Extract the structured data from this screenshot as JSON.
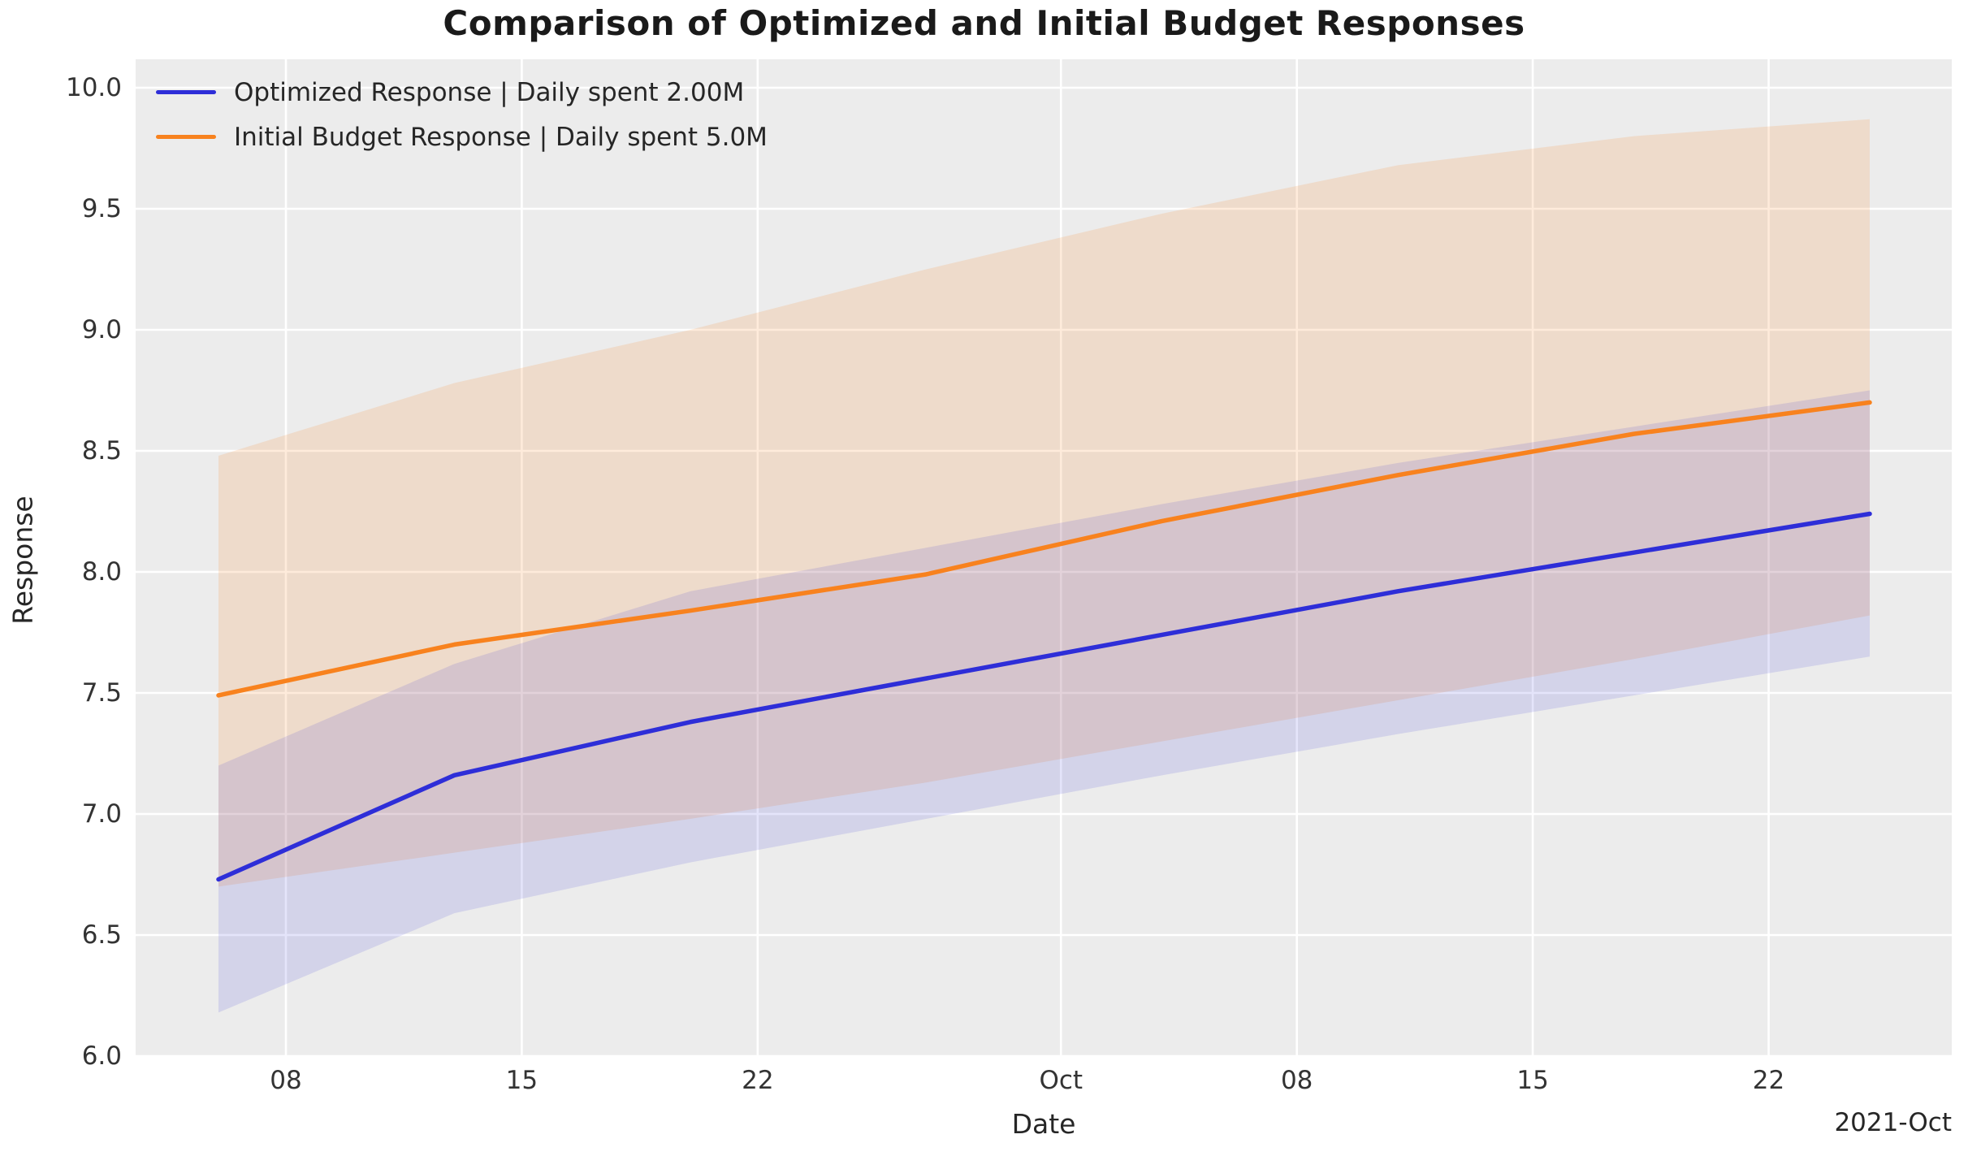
{
  "chart_data": {
    "type": "line",
    "title": "Comparison of Optimized and Initial Budget Responses",
    "xlabel": "Date",
    "ylabel": "Response",
    "axis_offset_label": "2021-Oct",
    "ylim": [
      6.0,
      10.0
    ],
    "xlim_dates": [
      "2021-09-03",
      "2021-10-28"
    ],
    "grid": true,
    "legend_position": "upper-left",
    "colors": {
      "optimized_line": "#2e2ed8",
      "initial_line": "#f8821e",
      "optimized_band": "rgba(50,50,215,0.13)",
      "initial_band": "rgba(246,130,30,0.16)",
      "plot_background": "#ececec",
      "gridline": "#ffffff",
      "text": "#262626"
    },
    "x_dates": [
      "2021-09-06",
      "2021-09-13",
      "2021-09-20",
      "2021-09-27",
      "2021-10-04",
      "2021-10-11",
      "2021-10-18",
      "2021-10-25"
    ],
    "x_day_offsets": [
      0,
      7,
      14,
      21,
      28,
      35,
      42,
      49
    ],
    "x_ticks": [
      {
        "label": "08",
        "day": 2
      },
      {
        "label": "15",
        "day": 9
      },
      {
        "label": "22",
        "day": 16
      },
      {
        "label": "Oct",
        "day": 25
      },
      {
        "label": "08",
        "day": 32
      },
      {
        "label": "15",
        "day": 39
      },
      {
        "label": "22",
        "day": 46
      }
    ],
    "y_ticks": [
      {
        "label": "6.0",
        "value": 6.0
      },
      {
        "label": "6.5",
        "value": 6.5
      },
      {
        "label": "7.0",
        "value": 7.0
      },
      {
        "label": "7.5",
        "value": 7.5
      },
      {
        "label": "8.0",
        "value": 8.0
      },
      {
        "label": "8.5",
        "value": 8.5
      },
      {
        "label": "9.0",
        "value": 9.0
      },
      {
        "label": "9.5",
        "value": 9.5
      },
      {
        "label": "10.0",
        "value": 10.0
      }
    ],
    "series": [
      {
        "name": "optimized",
        "legend_label": "Optimized Response | Daily spent 2.00M",
        "values": [
          6.73,
          7.16,
          7.38,
          7.56,
          7.74,
          7.92,
          8.08,
          8.24
        ],
        "band_lower": [
          6.18,
          6.59,
          6.8,
          6.98,
          7.16,
          7.33,
          7.49,
          7.65
        ],
        "band_upper": [
          7.2,
          7.62,
          7.92,
          8.1,
          8.28,
          8.45,
          8.6,
          8.75
        ]
      },
      {
        "name": "initial_budget",
        "legend_label": "Initial Budget Response | Daily spent 5.0M",
        "values": [
          7.49,
          7.7,
          7.84,
          7.99,
          8.21,
          8.4,
          8.57,
          8.7
        ],
        "band_lower": [
          6.7,
          6.84,
          6.98,
          7.13,
          7.3,
          7.47,
          7.64,
          7.82
        ],
        "band_upper": [
          8.48,
          8.78,
          9.0,
          9.25,
          9.48,
          9.68,
          9.8,
          9.87
        ]
      }
    ]
  }
}
